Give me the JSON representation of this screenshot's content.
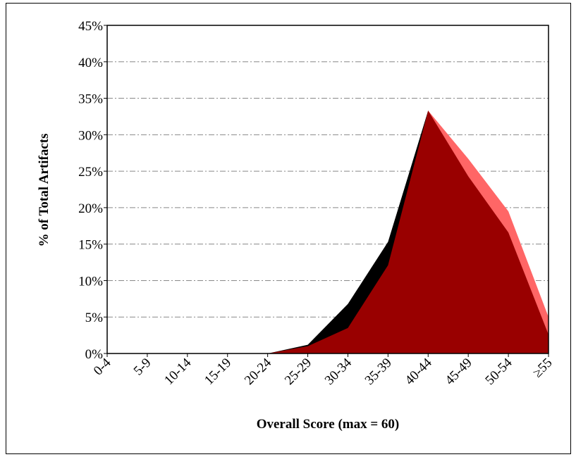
{
  "chart_data": {
    "type": "area",
    "xlabel": "Overall Score (max = 60)",
    "ylabel": "% of  Total Artifacts",
    "categories": [
      "0-4",
      "5-9",
      "10-14",
      "15-19",
      "20-24",
      "25-29",
      "30-34",
      "35-39",
      "40-44",
      "45-49",
      "50-54",
      "≥55"
    ],
    "series": [
      {
        "color": "#ff6666",
        "values": [
          0,
          0,
          0,
          0,
          0,
          0.5,
          2.5,
          10,
          33.3,
          26.7,
          19.5,
          5
        ]
      },
      {
        "color": "#000000",
        "values": [
          0,
          0,
          0,
          0,
          0,
          1.2,
          6.8,
          15.3,
          33.3,
          22,
          14,
          1.5
        ]
      },
      {
        "color": "#990000",
        "values": [
          0,
          0,
          0,
          0,
          0,
          1,
          3.5,
          12.1,
          33.3,
          24.3,
          16.6,
          2.6
        ]
      }
    ],
    "ylim": [
      0,
      45
    ],
    "yticks": [
      {
        "value": 0,
        "label": "0%"
      },
      {
        "value": 5,
        "label": "5%"
      },
      {
        "value": 10,
        "label": "10%"
      },
      {
        "value": 15,
        "label": "15%"
      },
      {
        "value": 20,
        "label": "20%"
      },
      {
        "value": 25,
        "label": "25%"
      },
      {
        "value": 30,
        "label": "30%"
      },
      {
        "value": 35,
        "label": "35%"
      },
      {
        "value": 40,
        "label": "40%"
      },
      {
        "value": 45,
        "label": "45%"
      }
    ],
    "grid": true
  }
}
